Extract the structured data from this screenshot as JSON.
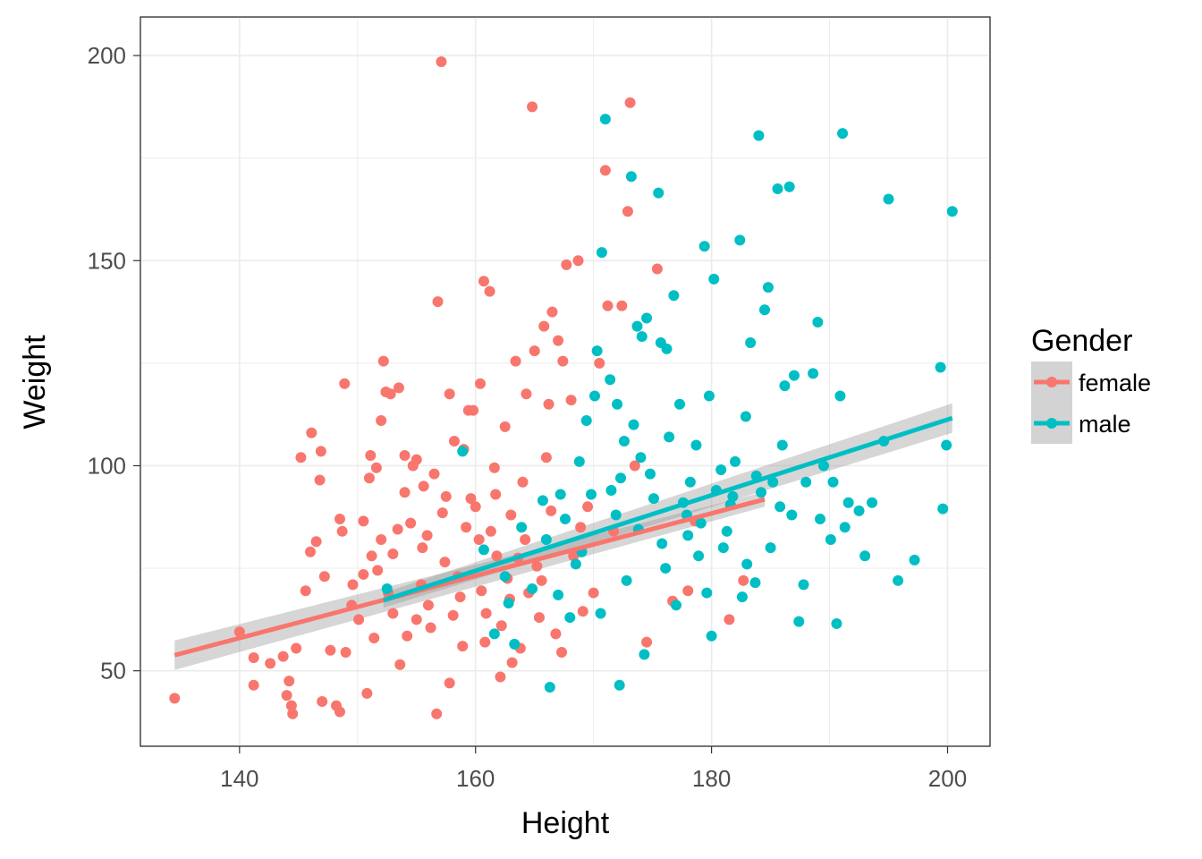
{
  "chart_data": {
    "type": "scatter",
    "xlabel": "Height",
    "ylabel": "Weight",
    "xlim": [
      131.6,
      203.6
    ],
    "ylim": [
      31.6,
      209.4
    ],
    "x_ticks": [
      140,
      160,
      180,
      200
    ],
    "y_ticks": [
      50,
      100,
      150,
      200
    ],
    "grid": true,
    "legend": {
      "title": "Gender",
      "placement": "right"
    },
    "series": [
      {
        "name": "female",
        "color": "#F8766D",
        "points": [
          [
            134.5,
            43.3
          ],
          [
            140.0,
            59.5
          ],
          [
            141.2,
            53.2
          ],
          [
            141.2,
            46.5
          ],
          [
            142.6,
            51.8
          ],
          [
            143.7,
            53.5
          ],
          [
            144.0,
            44.0
          ],
          [
            144.4,
            41.5
          ],
          [
            144.5,
            39.5
          ],
          [
            144.2,
            47.5
          ],
          [
            144.8,
            55.5
          ],
          [
            145.2,
            102.0
          ],
          [
            145.6,
            69.5
          ],
          [
            146.0,
            79.0
          ],
          [
            146.1,
            108.0
          ],
          [
            146.5,
            81.5
          ],
          [
            146.9,
            103.5
          ],
          [
            146.8,
            96.5
          ],
          [
            147.0,
            42.5
          ],
          [
            147.2,
            73.0
          ],
          [
            147.7,
            55.0
          ],
          [
            148.2,
            41.5
          ],
          [
            148.5,
            87.0
          ],
          [
            148.5,
            40.0
          ],
          [
            148.7,
            84.0
          ],
          [
            148.9,
            120.0
          ],
          [
            149.0,
            54.5
          ],
          [
            149.6,
            71.0
          ],
          [
            150.1,
            62.5
          ],
          [
            150.5,
            86.5
          ],
          [
            150.8,
            44.5
          ],
          [
            151.0,
            97.0
          ],
          [
            151.1,
            102.5
          ],
          [
            151.2,
            78.0
          ],
          [
            151.6,
            99.5
          ],
          [
            151.7,
            74.5
          ],
          [
            152.0,
            111.0
          ],
          [
            152.2,
            125.5
          ],
          [
            152.4,
            118.0
          ],
          [
            152.8,
            117.5
          ],
          [
            153.0,
            64.0
          ],
          [
            153.5,
            119.0
          ],
          [
            153.6,
            51.5
          ],
          [
            154.0,
            102.5
          ],
          [
            154.2,
            58.5
          ],
          [
            154.7,
            100.0
          ],
          [
            155.0,
            101.5
          ],
          [
            155.6,
            95.0
          ],
          [
            155.4,
            71.0
          ],
          [
            155.9,
            83.0
          ],
          [
            156.2,
            60.5
          ],
          [
            156.7,
            39.5
          ],
          [
            156.8,
            140.0
          ],
          [
            157.1,
            198.5
          ],
          [
            157.5,
            92.5
          ],
          [
            157.8,
            117.5
          ],
          [
            158.2,
            106.0
          ],
          [
            158.7,
            68.0
          ],
          [
            158.9,
            56.0
          ],
          [
            159.4,
            113.5
          ],
          [
            159.8,
            113.5
          ],
          [
            160.0,
            90.0
          ],
          [
            160.3,
            82.0
          ],
          [
            160.4,
            120.0
          ],
          [
            160.7,
            145.0
          ],
          [
            160.9,
            64.0
          ],
          [
            161.2,
            142.5
          ],
          [
            161.6,
            99.5
          ],
          [
            161.8,
            78.0
          ],
          [
            162.1,
            48.5
          ],
          [
            162.5,
            109.5
          ],
          [
            162.7,
            72.5
          ],
          [
            163.0,
            88.0
          ],
          [
            163.4,
            125.5
          ],
          [
            163.8,
            55.5
          ],
          [
            164.0,
            96.0
          ],
          [
            164.3,
            117.5
          ],
          [
            164.8,
            187.5
          ],
          [
            165.0,
            128.0
          ],
          [
            165.2,
            75.5
          ],
          [
            165.4,
            63.0
          ],
          [
            165.8,
            134.0
          ],
          [
            166.0,
            102.0
          ],
          [
            166.2,
            115.0
          ],
          [
            166.5,
            137.5
          ],
          [
            166.8,
            59.0
          ],
          [
            167.0,
            130.5
          ],
          [
            167.4,
            125.5
          ],
          [
            167.7,
            149.0
          ],
          [
            168.1,
            116.0
          ],
          [
            168.7,
            150.0
          ],
          [
            168.9,
            85.0
          ],
          [
            169.5,
            90.0
          ],
          [
            170.0,
            69.0
          ],
          [
            170.5,
            125.0
          ],
          [
            171.0,
            172.0
          ],
          [
            171.2,
            139.0
          ],
          [
            171.7,
            84.0
          ],
          [
            172.4,
            139.0
          ],
          [
            172.9,
            162.0
          ],
          [
            173.1,
            188.5
          ],
          [
            173.5,
            100.0
          ],
          [
            174.5,
            57.0
          ],
          [
            175.4,
            148.0
          ],
          [
            176.7,
            67.0
          ],
          [
            178.0,
            69.5
          ],
          [
            178.6,
            86.5
          ],
          [
            181.5,
            62.5
          ],
          [
            182.7,
            72.0
          ],
          [
            155.5,
            80.0
          ],
          [
            156.0,
            66.0
          ],
          [
            157.2,
            88.5
          ],
          [
            158.5,
            73.0
          ],
          [
            159.6,
            92.0
          ],
          [
            160.5,
            69.5
          ],
          [
            161.3,
            84.0
          ],
          [
            162.2,
            61.0
          ],
          [
            163.6,
            77.5
          ],
          [
            164.5,
            69.0
          ],
          [
            153.0,
            78.5
          ],
          [
            154.5,
            86.0
          ],
          [
            155.0,
            62.5
          ],
          [
            156.5,
            98.0
          ],
          [
            157.8,
            47.0
          ],
          [
            159.0,
            104.0
          ],
          [
            160.8,
            57.0
          ],
          [
            161.7,
            93.0
          ],
          [
            162.9,
            67.5
          ],
          [
            163.1,
            52.0
          ],
          [
            164.2,
            82.0
          ],
          [
            165.6,
            72.0
          ],
          [
            166.4,
            89.0
          ],
          [
            167.3,
            54.5
          ],
          [
            168.3,
            78.0
          ],
          [
            169.1,
            64.5
          ],
          [
            149.5,
            66.0
          ],
          [
            150.5,
            73.5
          ],
          [
            151.4,
            58.0
          ],
          [
            152.6,
            69.0
          ],
          [
            153.4,
            84.5
          ],
          [
            154.0,
            93.5
          ],
          [
            152.0,
            82.0
          ],
          [
            157.4,
            76.5
          ],
          [
            158.1,
            63.5
          ],
          [
            159.2,
            85.0
          ]
        ]
      },
      {
        "name": "male",
        "color": "#00BFC4",
        "points": [
          [
            152.5,
            70.0
          ],
          [
            158.9,
            103.5
          ],
          [
            162.5,
            73.0
          ],
          [
            163.3,
            56.5
          ],
          [
            166.3,
            46.0
          ],
          [
            167.2,
            93.0
          ],
          [
            168.0,
            63.0
          ],
          [
            169.4,
            111.0
          ],
          [
            170.3,
            128.0
          ],
          [
            170.7,
            152.0
          ],
          [
            171.0,
            184.5
          ],
          [
            171.4,
            121.0
          ],
          [
            172.0,
            115.0
          ],
          [
            172.2,
            46.5
          ],
          [
            172.6,
            106.0
          ],
          [
            173.2,
            170.5
          ],
          [
            173.7,
            134.0
          ],
          [
            174.1,
            131.5
          ],
          [
            174.5,
            136.0
          ],
          [
            174.8,
            98.0
          ],
          [
            175.5,
            166.5
          ],
          [
            175.7,
            130.0
          ],
          [
            176.2,
            128.5
          ],
          [
            176.8,
            141.5
          ],
          [
            177.3,
            115.0
          ],
          [
            178.0,
            83.0
          ],
          [
            178.7,
            105.0
          ],
          [
            179.4,
            153.5
          ],
          [
            179.8,
            117.0
          ],
          [
            180.2,
            145.5
          ],
          [
            180.8,
            99.0
          ],
          [
            181.0,
            80.0
          ],
          [
            181.6,
            90.5
          ],
          [
            182.4,
            155.0
          ],
          [
            182.9,
            112.0
          ],
          [
            183.3,
            130.0
          ],
          [
            183.7,
            71.5
          ],
          [
            184.0,
            180.5
          ],
          [
            184.5,
            138.0
          ],
          [
            184.8,
            143.5
          ],
          [
            185.2,
            96.0
          ],
          [
            185.6,
            167.5
          ],
          [
            186.2,
            119.5
          ],
          [
            186.6,
            168.0
          ],
          [
            187.0,
            122.0
          ],
          [
            187.4,
            62.0
          ],
          [
            188.0,
            96.0
          ],
          [
            188.6,
            122.5
          ],
          [
            189.0,
            135.0
          ],
          [
            189.5,
            100.0
          ],
          [
            190.1,
            82.0
          ],
          [
            190.6,
            61.5
          ],
          [
            190.9,
            117.0
          ],
          [
            191.1,
            181.0
          ],
          [
            191.6,
            91.0
          ],
          [
            192.5,
            89.0
          ],
          [
            193.0,
            78.0
          ],
          [
            193.6,
            91.0
          ],
          [
            194.6,
            106.0
          ],
          [
            195.0,
            165.0
          ],
          [
            195.8,
            72.0
          ],
          [
            197.2,
            77.0
          ],
          [
            199.4,
            124.0
          ],
          [
            199.6,
            89.5
          ],
          [
            199.9,
            105.0
          ],
          [
            200.4,
            162.0
          ],
          [
            166.0,
            82.0
          ],
          [
            167.0,
            68.5
          ],
          [
            168.5,
            76.0
          ],
          [
            169.8,
            93.0
          ],
          [
            170.6,
            64.0
          ],
          [
            171.9,
            88.0
          ],
          [
            172.8,
            72.0
          ],
          [
            173.8,
            84.5
          ],
          [
            174.3,
            54.0
          ],
          [
            175.1,
            92.0
          ],
          [
            176.1,
            75.0
          ],
          [
            177.0,
            66.0
          ],
          [
            177.9,
            88.0
          ],
          [
            178.9,
            78.0
          ],
          [
            179.6,
            69.0
          ],
          [
            180.4,
            94.0
          ],
          [
            181.3,
            84.0
          ],
          [
            182.0,
            101.0
          ],
          [
            183.0,
            76.0
          ],
          [
            184.2,
            93.5
          ],
          [
            185.0,
            80.0
          ],
          [
            186.0,
            105.0
          ],
          [
            186.8,
            88.0
          ],
          [
            187.8,
            71.0
          ],
          [
            189.2,
            87.0
          ],
          [
            190.3,
            96.0
          ],
          [
            191.3,
            85.0
          ],
          [
            176.4,
            107.0
          ],
          [
            178.2,
            96.0
          ],
          [
            180.0,
            58.5
          ],
          [
            182.6,
            68.0
          ],
          [
            174.0,
            102.0
          ],
          [
            171.5,
            94.0
          ],
          [
            169.0,
            79.0
          ],
          [
            167.6,
            87.0
          ],
          [
            165.7,
            91.5
          ],
          [
            164.8,
            70.0
          ],
          [
            163.9,
            85.0
          ],
          [
            162.8,
            66.5
          ],
          [
            161.6,
            59.0
          ],
          [
            160.7,
            79.5
          ],
          [
            175.8,
            81.0
          ],
          [
            177.6,
            91.0
          ],
          [
            179.1,
            86.0
          ],
          [
            181.8,
            92.5
          ],
          [
            183.8,
            97.5
          ],
          [
            185.8,
            90.0
          ],
          [
            172.3,
            97.0
          ],
          [
            173.4,
            110.0
          ],
          [
            170.1,
            117.0
          ],
          [
            168.8,
            101.0
          ]
        ]
      }
    ],
    "fits": [
      {
        "series": "female",
        "x": [
          134.5,
          184.5
        ],
        "y": [
          53.8,
          91.8
        ],
        "se": [
          3.6,
          1.8
        ]
      },
      {
        "series": "male",
        "x": [
          152.2,
          200.4
        ],
        "y": [
          67.2,
          111.6
        ],
        "se": [
          1.8,
          3.6
        ]
      }
    ]
  }
}
